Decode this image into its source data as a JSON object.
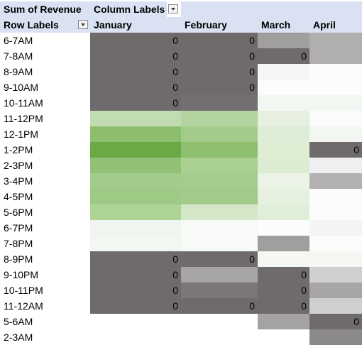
{
  "pivot": {
    "corner_label": "Sum of Revenue",
    "column_labels": "Column Labels",
    "row_labels": "Row Labels",
    "months": [
      "January",
      "February",
      "March",
      "April"
    ],
    "rows": [
      {
        "label": "6-7AM",
        "values": [
          "0",
          "0",
          "",
          ""
        ],
        "colors": [
          "#6f6a6b",
          "#6f6a6b",
          "#a09e9f",
          "#b0aeaf"
        ]
      },
      {
        "label": "7-8AM",
        "values": [
          "0",
          "0",
          "0",
          ""
        ],
        "colors": [
          "#6f6a6b",
          "#6f6a6b",
          "#6f6a6b",
          "#b0aeaf"
        ]
      },
      {
        "label": "8-9AM",
        "values": [
          "0",
          "0",
          "",
          ""
        ],
        "colors": [
          "#6f6a6b",
          "#6f6a6b",
          "#f6f7f5",
          "#fcfcfc"
        ]
      },
      {
        "label": "9-10AM",
        "values": [
          "0",
          "0",
          "",
          ""
        ],
        "colors": [
          "#6f6a6b",
          "#6f6a6b",
          "#fcfcfc",
          "#fcfcfc"
        ]
      },
      {
        "label": "10-11AM",
        "values": [
          "0",
          "",
          "",
          ""
        ],
        "colors": [
          "#6f6a6b",
          "#747071",
          "#f3f7f1",
          "#f3f7f1"
        ]
      },
      {
        "label": "11-12PM",
        "values": [
          "",
          "",
          "",
          ""
        ],
        "colors": [
          "#c1dcb0",
          "#b3d49f",
          "#e6efe0",
          "#fbfbfd"
        ]
      },
      {
        "label": "12-1PM",
        "values": [
          "",
          "",
          "",
          ""
        ],
        "colors": [
          "#8dbe6e",
          "#a3cc8c",
          "#deeed6",
          "#f3f7f1"
        ]
      },
      {
        "label": "1-2PM",
        "values": [
          "",
          "",
          "",
          "0"
        ],
        "colors": [
          "#6aaa44",
          "#8ebf6f",
          "#ddeed5",
          "#6f6a6b"
        ]
      },
      {
        "label": "2-3PM",
        "values": [
          "",
          "",
          "",
          ""
        ],
        "colors": [
          "#92c175",
          "#a9d090",
          "#dbecd2",
          "#efeef0"
        ]
      },
      {
        "label": "3-4PM",
        "values": [
          "",
          "",
          "",
          ""
        ],
        "colors": [
          "#a3cc8c",
          "#a4cc8c",
          "#eaf3e5",
          "#b2b0b1"
        ]
      },
      {
        "label": "4-5PM",
        "values": [
          "",
          "",
          "",
          ""
        ],
        "colors": [
          "#9fca86",
          "#a2cb8a",
          "#e5f0df",
          "#fcfcfc"
        ]
      },
      {
        "label": "5-6PM",
        "values": [
          "",
          "",
          "",
          ""
        ],
        "colors": [
          "#add395",
          "#d4e8c8",
          "#dfeed8",
          "#fcfcfc"
        ]
      },
      {
        "label": "6-7PM",
        "values": [
          "",
          "",
          "",
          ""
        ],
        "colors": [
          "#f1f5ef",
          "#f8faf7",
          "#fcfcfc",
          "#f4f4f4"
        ]
      },
      {
        "label": "7-8PM",
        "values": [
          "",
          "",
          "",
          ""
        ],
        "colors": [
          "#f3f7f1",
          "#f8faf7",
          "#a09e9f",
          "#fcfcfc"
        ]
      },
      {
        "label": "8-9PM",
        "values": [
          "0",
          "0",
          "",
          ""
        ],
        "colors": [
          "#6f6a6b",
          "#6f6a6b",
          "#f4f7f2",
          "#f4f7f2"
        ]
      },
      {
        "label": "9-10PM",
        "values": [
          "0",
          "",
          "0",
          ""
        ],
        "colors": [
          "#6f6a6b",
          "#a6a4a5",
          "#6f6a6b",
          "#d1d0d1"
        ]
      },
      {
        "label": "10-11PM",
        "values": [
          "0",
          "",
          "0",
          ""
        ],
        "colors": [
          "#6f6a6b",
          "#7b7778",
          "#6f6a6b",
          "#a7a5a6"
        ]
      },
      {
        "label": "11-12AM",
        "values": [
          "0",
          "0",
          "0",
          ""
        ],
        "colors": [
          "#6f6a6b",
          "#6f6a6b",
          "#6f6a6b",
          "#d0cfd0"
        ]
      },
      {
        "label": "5-6AM",
        "values": [
          "",
          "",
          "",
          "0"
        ],
        "colors": [
          "#ffffff",
          "#ffffff",
          "#a4a2a3",
          "#6f6a6b"
        ]
      },
      {
        "label": "2-3AM",
        "values": [
          "",
          "",
          "",
          ""
        ],
        "colors": [
          "#ffffff",
          "#ffffff",
          "#ffffff",
          "#8c898a"
        ]
      }
    ]
  }
}
